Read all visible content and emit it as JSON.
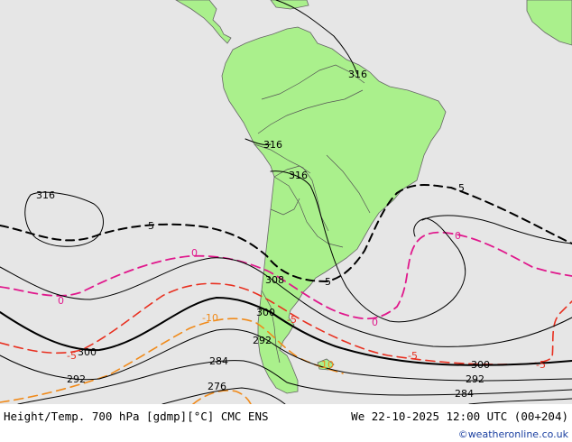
{
  "footer": {
    "title": "Height/Temp. 700 hPa [gdmp][°C] CMC ENS",
    "datetime": "We 22-10-2025 12:00 UTC (00+204)",
    "credit": "©weatheronline.co.uk"
  },
  "colors": {
    "ocean": "#e6e6e6",
    "land": "#aaf08c",
    "border": "#555555",
    "height_contour": "#000000",
    "isotherm_zero": "#e0188c",
    "isotherm_minus5": "#e83020",
    "isotherm_minus10": "#f08a1a"
  },
  "contours": {
    "height": [
      {
        "label": "316"
      },
      {
        "label": "316"
      },
      {
        "label": "316"
      },
      {
        "label": "316"
      },
      {
        "label": "308"
      },
      {
        "label": "300"
      },
      {
        "label": "300"
      },
      {
        "label": "300"
      },
      {
        "label": "292"
      },
      {
        "label": "292"
      },
      {
        "label": "292"
      },
      {
        "label": "284"
      },
      {
        "label": "284"
      },
      {
        "label": "276"
      }
    ],
    "isotherms": [
      {
        "label": "5"
      },
      {
        "label": "5"
      },
      {
        "label": "5"
      },
      {
        "label": "0"
      },
      {
        "label": "0"
      },
      {
        "label": "0"
      },
      {
        "label": "0"
      },
      {
        "label": "-5"
      },
      {
        "label": "-5"
      },
      {
        "label": "-5"
      },
      {
        "label": "-5"
      },
      {
        "label": "-10"
      },
      {
        "label": "-10"
      }
    ]
  }
}
